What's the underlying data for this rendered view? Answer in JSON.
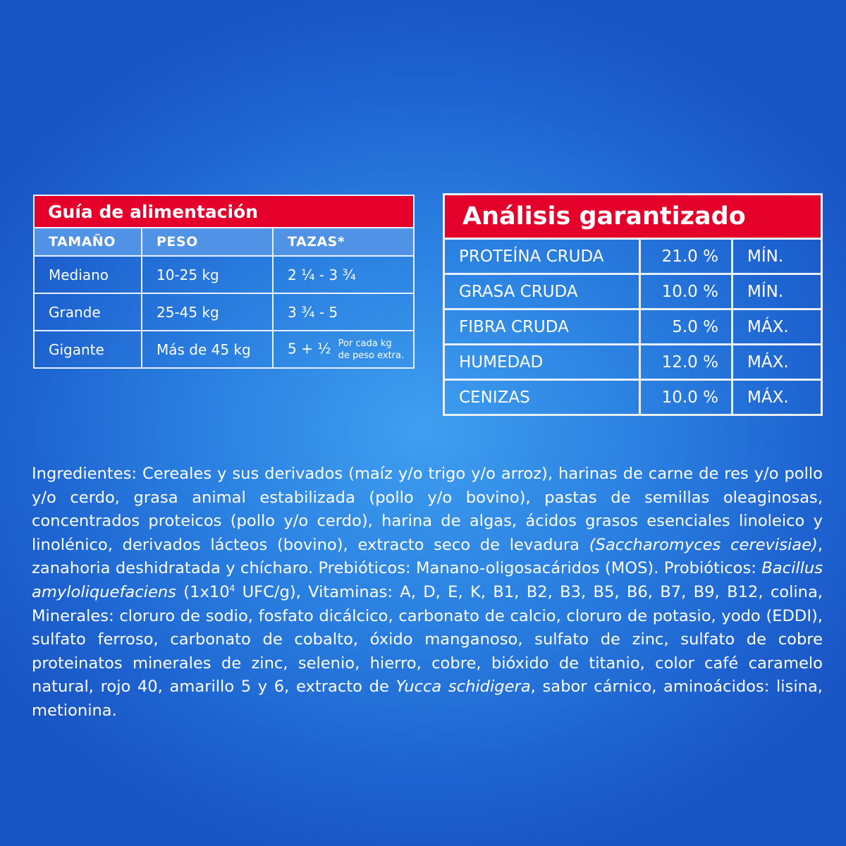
{
  "feeding_guide": {
    "title": "Guía de alimentación",
    "headers": [
      "TAMAÑO",
      "PESO",
      "TAZAS*"
    ],
    "rows": [
      {
        "size": "Mediano",
        "weight": "10-25 kg",
        "cups": "2 ¼ - 3 ¾"
      },
      {
        "size": "Grande",
        "weight": "25-45 kg",
        "cups": "3 ¾ - 5"
      },
      {
        "size": "Gigante",
        "weight": "Más de 45 kg",
        "cups": "5 + ½",
        "note_line1": "Por cada kg",
        "note_line2": "de peso extra."
      }
    ]
  },
  "guaranteed_analysis": {
    "title": "Análisis garantizado",
    "rows": [
      {
        "nutrient": "PROTEÍNA CRUDA",
        "value": "21.0 %",
        "limit": "MÍN."
      },
      {
        "nutrient": "GRASA CRUDA",
        "value": "10.0 %",
        "limit": "MÍN."
      },
      {
        "nutrient": "FIBRA CRUDA",
        "value": "5.0 %",
        "limit": "MÁX."
      },
      {
        "nutrient": "HUMEDAD",
        "value": "12.0 %",
        "limit": "MÁX."
      },
      {
        "nutrient": "CENIZAS",
        "value": "10.0 %",
        "limit": "MÁX."
      }
    ]
  },
  "ingredients": {
    "segments": [
      "Ingredientes: Cereales y sus derivados (maíz y/o trigo y/o arroz), harinas de carne de res y/o pollo y/o cerdo, grasa animal estabilizada (pollo y/o bovino), pastas de semillas oleaginosas, concentrados proteicos (pollo y/o cerdo), harina de algas, ácidos grasos esenciales linoleico y linolénico, derivados lácteos (bovino), extracto seco de levadura ",
      "(Saccharomyces cerevisiae)",
      ", zanahoria deshidratada y chícharo. Prebióticos: Manano-oligosacáridos (MOS). Probióticos: ",
      "Bacillus amyloliquefaciens",
      " (1x10",
      "4",
      " UFC/g), Vitaminas: A, D, E, K, B1, B2, B3, B5, B6, B7, B9, B12, colina, Minerales: cloruro de sodio, fosfato dicálcico, carbonato de calcio, cloruro de potasio, yodo (EDDI), sulfato ferroso, carbonato de cobalto, óxido manganoso, sulfato de zinc, sulfato de cobre proteinatos minerales de zinc, selenio, hierro, cobre,  bióxido de titanio, color café caramelo natural, rojo 40, amarillo  5 y 6, extracto de ",
      "Yucca schidigera",
      ", sabor cárnico, aminoácidos: lisina, metionina."
    ]
  },
  "colors": {
    "accent_red": "#e4002b",
    "background_blue": "#2a7fe0",
    "header_blue": "#4f92e6"
  }
}
